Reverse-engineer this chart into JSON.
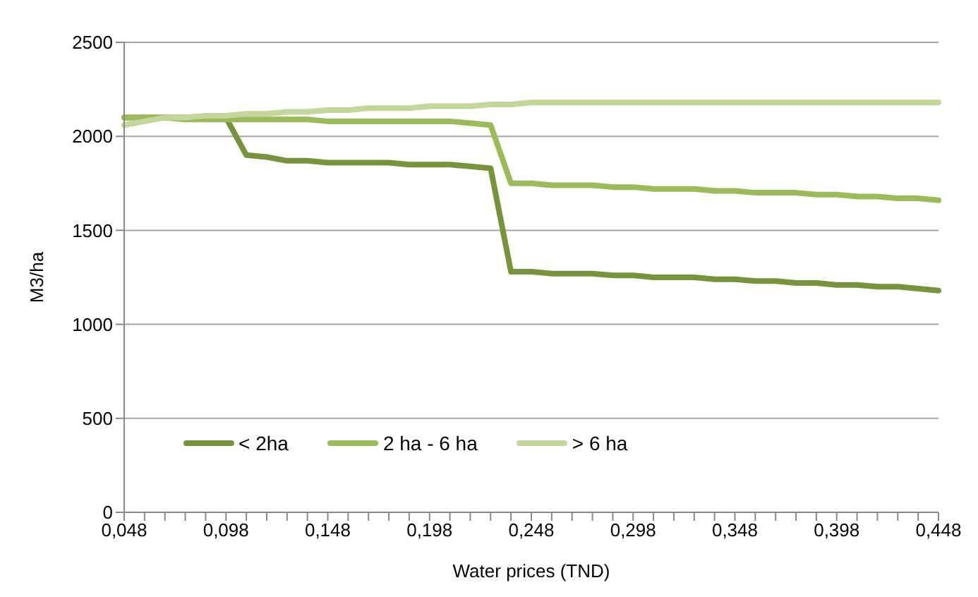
{
  "chart_data": {
    "type": "line",
    "xlabel": "Water prices (TND)",
    "ylabel": "M3/ha",
    "categories": [
      "0,048",
      null,
      null,
      null,
      null,
      "0,098",
      null,
      null,
      null,
      null,
      "0,148",
      null,
      null,
      null,
      null,
      "0,198",
      null,
      null,
      null,
      null,
      "0,248",
      null,
      null,
      null,
      null,
      "0,298",
      null,
      null,
      null,
      null,
      "0,348",
      null,
      null,
      null,
      null,
      "0,398",
      null,
      null,
      null,
      null,
      "0,448"
    ],
    "series": [
      {
        "name": "< 2ha",
        "color": "#77933c",
        "values": [
          2100,
          2100,
          2100,
          2100,
          2100,
          2100,
          1900,
          1890,
          1870,
          1870,
          1860,
          1860,
          1860,
          1860,
          1850,
          1850,
          1850,
          1840,
          1830,
          1280,
          1280,
          1270,
          1270,
          1270,
          1260,
          1260,
          1250,
          1250,
          1250,
          1240,
          1240,
          1230,
          1230,
          1220,
          1220,
          1210,
          1210,
          1200,
          1200,
          1190,
          1180
        ]
      },
      {
        "name": "2 ha - 6 ha",
        "color": "#9bbb59",
        "values": [
          2100,
          2100,
          2100,
          2090,
          2090,
          2090,
          2090,
          2090,
          2090,
          2090,
          2080,
          2080,
          2080,
          2080,
          2080,
          2080,
          2080,
          2070,
          2060,
          1750,
          1750,
          1740,
          1740,
          1740,
          1730,
          1730,
          1720,
          1720,
          1720,
          1710,
          1710,
          1700,
          1700,
          1700,
          1690,
          1690,
          1680,
          1680,
          1670,
          1670,
          1660
        ]
      },
      {
        "name": "> 6 ha",
        "color": "#c3d69b",
        "values": [
          2060,
          2080,
          2100,
          2100,
          2110,
          2110,
          2120,
          2120,
          2130,
          2130,
          2140,
          2140,
          2150,
          2150,
          2150,
          2160,
          2160,
          2160,
          2170,
          2170,
          2180,
          2180,
          2180,
          2180,
          2180,
          2180,
          2180,
          2180,
          2180,
          2180,
          2180,
          2180,
          2180,
          2180,
          2180,
          2180,
          2180,
          2180,
          2180,
          2180,
          2180
        ]
      }
    ],
    "ylim": [
      0,
      2500
    ],
    "yticks": [
      0,
      500,
      1000,
      1500,
      2000,
      2500
    ],
    "grid": "y",
    "legend": "bottom left",
    "marker": "none",
    "line_style": "solid"
  }
}
